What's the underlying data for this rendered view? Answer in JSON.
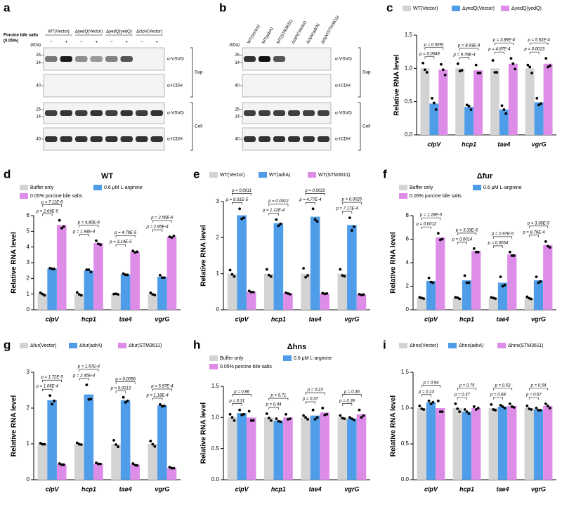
{
  "blots": [
    {
      "panel": "a",
      "columns": [
        "WT(Vector)",
        "ΔyedQ(Vector)",
        "ΔyedQ(yedQ)",
        "ΔclpV(Vector)"
      ],
      "treatment": [
        "Porcine bile salts",
        "(0.05%)"
      ],
      "signs": [
        "−",
        "+",
        "−",
        "+",
        "−",
        "+",
        "−",
        "+"
      ],
      "kda_label": "(kDa)",
      "fractions": [
        {
          "name": "Sup",
          "rows": [
            {
              "antibody": "α-VSVG",
              "markers": [
                25,
                14
              ]
            },
            {
              "antibody": "α-ICDH",
              "markers": [
                40
              ]
            }
          ]
        },
        {
          "name": "Cell",
          "rows": [
            {
              "antibody": "α-VSVG",
              "markers": [
                25,
                14
              ]
            },
            {
              "antibody": "α-ICDH",
              "markers": [
                40
              ]
            }
          ]
        }
      ]
    },
    {
      "panel": "b",
      "columns": [
        "WT(Vector)",
        "WT(adrA)",
        "WT(STM3611)",
        "ΔclpV(Vector)",
        "ΔclpV(adrA)",
        "ΔclpV(STM3611)"
      ],
      "kda_label": "(kDa)",
      "fractions": [
        {
          "name": "Sup",
          "rows": [
            {
              "antibody": "α-VSVG",
              "markers": [
                25,
                14
              ]
            },
            {
              "antibody": "α-ICDH",
              "markers": [
                40
              ]
            }
          ]
        },
        {
          "name": "Cell",
          "rows": [
            {
              "antibody": "α-VSVG",
              "markers": [
                25,
                14
              ]
            },
            {
              "antibody": "α-ICDH",
              "markers": [
                40
              ]
            }
          ]
        }
      ]
    }
  ],
  "chart_data": [
    {
      "type": "bar",
      "panel": "c",
      "y_label": "Relative RNA level",
      "categories": [
        "clpV",
        "hcp1",
        "tae4",
        "vgrG"
      ],
      "ylim": [
        0,
        1.5
      ],
      "yticks": [
        {
          "value": 0,
          "label": "0.0"
        },
        {
          "value": 0.5,
          "label": "0.5"
        },
        {
          "value": 1,
          "label": "1.0"
        },
        {
          "value": 1.5,
          "label": "1.5"
        }
      ],
      "series": [
        {
          "name": "WT(Vector)",
          "color": "#d3d3d3",
          "values": [
            1.0,
            1.0,
            1.0,
            1.0
          ],
          "points": [
            [
              1.08,
              0.94,
              0.98
            ],
            [
              1.07,
              0.97,
              0.96
            ],
            [
              1.12,
              0.94,
              0.94
            ],
            [
              1.05,
              0.93,
              1.02
            ]
          ]
        },
        {
          "name": "ΔyedQ(Vector)",
          "color": "#4f9de8",
          "values": [
            0.47,
            0.42,
            0.38,
            0.49
          ],
          "points": [
            [
              0.55,
              0.38,
              0.48
            ],
            [
              0.45,
              0.38,
              0.43
            ],
            [
              0.44,
              0.32,
              0.38
            ],
            [
              0.55,
              0.47,
              0.45
            ]
          ]
        },
        {
          "name": "ΔyedQ(yedQ)",
          "color": "#dd8de8",
          "values": [
            0.98,
            0.97,
            1.07,
            1.07
          ],
          "points": [
            [
              1.06,
              0.9,
              0.98
            ],
            [
              1.05,
              0.93,
              0.93
            ],
            [
              1.15,
              0.99,
              1.07
            ],
            [
              1.15,
              1.04,
              1.02
            ]
          ]
        }
      ],
      "p_values": [
        [
          "p = 0.0049",
          "p = 0.0091"
        ],
        [
          "p = 9.76E-4",
          "p = 8.93E-4"
        ],
        [
          "p = 4.87E-4",
          "p = 3.89E-4"
        ],
        [
          "p = 0.0013",
          "p = 5.62E-4"
        ]
      ]
    },
    {
      "type": "bar",
      "panel": "d",
      "title": "WT",
      "y_label": "Relative RNA level",
      "categories": [
        "clpV",
        "hcp1",
        "tae4",
        "vgrG"
      ],
      "ylim": [
        0,
        6
      ],
      "yticks": [
        0,
        1,
        2,
        3,
        4,
        5,
        6
      ],
      "series": [
        {
          "name": "Buffer only",
          "color": "#d3d3d3",
          "values": [
            1.0,
            1.0,
            1.0,
            1.0
          ],
          "points": [
            [
              1.08,
              0.92,
              1.0
            ],
            [
              1.1,
              0.92,
              0.98
            ],
            [
              1.0,
              0.98,
              1.02
            ],
            [
              1.08,
              0.94,
              0.98
            ]
          ]
        },
        {
          "name": "0.6 μM L-arginine",
          "color": "#4f9de8",
          "values": [
            2.62,
            2.5,
            2.25,
            2.1
          ],
          "points": [
            [
              2.65,
              2.6,
              2.61
            ],
            [
              2.55,
              2.4,
              2.55
            ],
            [
              2.3,
              2.22,
              2.23
            ],
            [
              2.2,
              2.05,
              2.05
            ]
          ]
        },
        {
          "name": "0.05% porcine bile salts",
          "color": "#dd8de8",
          "values": [
            5.4,
            4.25,
            3.7,
            4.65
          ],
          "points": [
            [
              5.7,
              5.3,
              5.2
            ],
            [
              4.4,
              4.15,
              4.2
            ],
            [
              3.75,
              3.7,
              3.65
            ],
            [
              4.65,
              4.7,
              4.6
            ]
          ]
        }
      ],
      "p_values": [
        [
          "p = 2.69E-5",
          "p = 7.11E-6"
        ],
        [
          "p = 1.94E-4",
          "p = 4.80E-6"
        ],
        [
          "p = 3.14E-5",
          "p = 4.79E-5"
        ],
        [
          "p = 2.95E-4",
          "p = 2.56E-6"
        ]
      ]
    },
    {
      "type": "bar",
      "panel": "e",
      "y_label": "Relative RNA level",
      "categories": [
        "clpV",
        "hcp1",
        "tae4",
        "vgrG"
      ],
      "ylim": [
        0,
        3
      ],
      "yticks": [
        0,
        1,
        2,
        3
      ],
      "series": [
        {
          "name": "WT(Vector)",
          "color": "#d3d3d3",
          "values": [
            1.0,
            1.0,
            1.0,
            1.0
          ],
          "points": [
            [
              1.1,
              0.92,
              0.98
            ],
            [
              1.12,
              0.92,
              0.96
            ],
            [
              1.15,
              0.95,
              0.9
            ],
            [
              1.12,
              0.93,
              0.95
            ]
          ]
        },
        {
          "name": "WT(adrA)",
          "color": "#4f9de8",
          "values": [
            2.62,
            2.4,
            2.58,
            2.35
          ],
          "points": [
            [
              2.8,
              2.55,
              2.52
            ],
            [
              2.5,
              2.38,
              2.33
            ],
            [
              2.8,
              2.45,
              2.5
            ],
            [
              2.55,
              2.3,
              2.2
            ]
          ]
        },
        {
          "name": "WT(STM3611)",
          "color": "#dd8de8",
          "values": [
            0.5,
            0.45,
            0.45,
            0.42
          ],
          "points": [
            [
              0.52,
              0.49,
              0.49
            ],
            [
              0.47,
              0.43,
              0.45
            ],
            [
              0.46,
              0.45,
              0.44
            ],
            [
              0.43,
              0.42,
              0.41
            ]
          ]
        }
      ],
      "p_values": [
        [
          "p = 9.01E-5",
          "p = 0.0011"
        ],
        [
          "p = 1.12E-4",
          "p = 0.0012"
        ],
        [
          "p = 4.77E-4",
          "p = 0.0022"
        ],
        [
          "p = 7.17E-4",
          "p = 0.0025"
        ]
      ]
    },
    {
      "type": "bar",
      "panel": "f",
      "title": "Δfur",
      "y_label": "Relative RNA level",
      "categories": [
        "clpV",
        "hcp1",
        "tae4",
        "vgrG"
      ],
      "ylim": [
        0,
        8
      ],
      "yticks": [
        0,
        2,
        4,
        6,
        8
      ],
      "series": [
        {
          "name": "Buffer only",
          "color": "#d3d3d3",
          "values": [
            1.0,
            1.0,
            1.0,
            1.0
          ],
          "points": [
            [
              1.05,
              0.95,
              1.0
            ],
            [
              1.05,
              0.93,
              1.02
            ],
            [
              1.05,
              0.95,
              1.0
            ],
            [
              1.1,
              0.92,
              0.98
            ]
          ]
        },
        {
          "name": "0.6 μM L-arginine",
          "color": "#4f9de8",
          "values": [
            2.45,
            2.5,
            2.3,
            2.5
          ],
          "points": [
            [
              2.7,
              2.3,
              2.35
            ],
            [
              2.9,
              2.3,
              2.3
            ],
            [
              2.8,
              2.1,
              2.0
            ],
            [
              2.8,
              2.4,
              2.3
            ]
          ]
        },
        {
          "name": "0.05% porcine bile salts",
          "color": "#dd8de8",
          "values": [
            6.15,
            5.0,
            4.7,
            5.5
          ],
          "points": [
            [
              6.5,
              6.0,
              5.95
            ],
            [
              5.2,
              4.9,
              4.9
            ],
            [
              4.9,
              4.6,
              4.6
            ],
            [
              5.8,
              5.3,
              5.4
            ]
          ]
        }
      ],
      "p_values": [
        [
          "p = 0.0012",
          "p = 1.18E-5"
        ],
        [
          "p = 0.0014",
          "p = 3.33E-6"
        ],
        [
          "p = 0.0054",
          "p = 2.97E-5"
        ],
        [
          "p = 8.76E-4",
          "p = 3.36E-5"
        ]
      ]
    },
    {
      "type": "bar",
      "panel": "g",
      "y_label": "Relative RNA level",
      "categories": [
        "clpV",
        "hcp1",
        "tae4",
        "vgrG"
      ],
      "ylim": [
        0,
        3
      ],
      "yticks": [
        0,
        1,
        2,
        3
      ],
      "series": [
        {
          "name": "Δfur(Vector)",
          "color": "#d3d3d3",
          "values": [
            1.0,
            1.0,
            1.0,
            1.0
          ],
          "points": [
            [
              1.02,
              0.99,
              0.99
            ],
            [
              1.03,
              0.98,
              0.99
            ],
            [
              1.1,
              0.92,
              0.98
            ],
            [
              1.08,
              0.93,
              0.99
            ]
          ]
        },
        {
          "name": "Δfur(adrA)",
          "color": "#4f9de8",
          "values": [
            2.22,
            2.38,
            2.22,
            2.07
          ],
          "points": [
            [
              2.35,
              2.2,
              2.11
            ],
            [
              2.65,
              2.25,
              2.24
            ],
            [
              2.3,
              2.2,
              2.16
            ],
            [
              2.1,
              2.06,
              2.05
            ]
          ]
        },
        {
          "name": "Δfur(STM3611)",
          "color": "#dd8de8",
          "values": [
            0.43,
            0.45,
            0.42,
            0.33
          ],
          "points": [
            [
              0.45,
              0.42,
              0.42
            ],
            [
              0.47,
              0.44,
              0.44
            ],
            [
              0.45,
              0.4,
              0.41
            ],
            [
              0.35,
              0.32,
              0.32
            ]
          ]
        }
      ],
      "p_values": [
        [
          "p = 1.06E-4",
          "p = 1.72E-5"
        ],
        [
          "p = 2.45E-4",
          "p = 1.57E-4"
        ],
        [
          "p = 0.0013",
          "p = 0.0056"
        ],
        [
          "p = 1.18E-4",
          "p = 5.97E-4"
        ]
      ]
    },
    {
      "type": "bar",
      "panel": "h",
      "title": "Δhns",
      "y_label": "Relative RNA level",
      "categories": [
        "clpV",
        "hcp1",
        "tae4",
        "vgrG"
      ],
      "ylim": [
        0,
        1.5
      ],
      "yticks": [
        {
          "value": 0,
          "label": "0.0"
        },
        {
          "value": 0.5,
          "label": "0.5"
        },
        {
          "value": 1,
          "label": "1.0"
        },
        {
          "value": 1.5,
          "label": "1.5"
        }
      ],
      "series": [
        {
          "name": "Buffer only",
          "color": "#d3d3d3",
          "values": [
            1.0,
            1.0,
            1.0,
            1.0
          ],
          "points": [
            [
              1.05,
              0.95,
              1.0
            ],
            [
              1.06,
              0.95,
              0.99
            ],
            [
              1.03,
              0.97,
              1.0
            ],
            [
              1.03,
              0.98,
              0.99
            ]
          ]
        },
        {
          "name": "0.6 μM L-arginine",
          "color": "#4f9de8",
          "values": [
            1.07,
            0.95,
            1.03,
            0.98
          ],
          "points": [
            [
              1.12,
              1.05,
              1.04
            ],
            [
              0.98,
              0.93,
              0.94
            ],
            [
              1.12,
              1.0,
              0.97
            ],
            [
              1.0,
              0.96,
              0.98
            ]
          ]
        },
        {
          "name": "0.05% porcine bile salts",
          "color": "#dd8de8",
          "values": [
            1.0,
            1.0,
            1.08,
            1.05
          ],
          "points": [
            [
              1.1,
              0.95,
              0.95
            ],
            [
              1.05,
              0.98,
              0.97
            ],
            [
              1.15,
              1.05,
              1.04
            ],
            [
              1.12,
              1.03,
              1.0
            ]
          ]
        }
      ],
      "p_values": [
        [
          "p = 0.31",
          "p = 0.86"
        ],
        [
          "p = 0.44",
          "p = 0.71"
        ],
        [
          "p = 0.37",
          "p = 0.23"
        ],
        [
          "p = 0.39",
          "p = 0.36"
        ]
      ]
    },
    {
      "type": "bar",
      "panel": "i",
      "y_label": "Relative RNA level",
      "categories": [
        "clpV",
        "hcp1",
        "tae4",
        "vgrG"
      ],
      "ylim": [
        0,
        1.5
      ],
      "yticks": [
        {
          "value": 0,
          "label": "0.0"
        },
        {
          "value": 0.5,
          "label": "0.5"
        },
        {
          "value": 1,
          "label": "1.0"
        },
        {
          "value": 1.5,
          "label": "1.5"
        }
      ],
      "series": [
        {
          "name": "Δhns(Vector)",
          "color": "#d3d3d3",
          "values": [
            1.0,
            1.0,
            1.0,
            1.0
          ],
          "points": [
            [
              1.03,
              0.98,
              0.99
            ],
            [
              1.06,
              0.95,
              0.99
            ],
            [
              1.05,
              0.97,
              0.98
            ],
            [
              1.03,
              0.98,
              0.99
            ]
          ]
        },
        {
          "name": "Δhns(adrA)",
          "color": "#4f9de8",
          "values": [
            1.08,
            0.95,
            1.02,
            0.98
          ],
          "points": [
            [
              1.1,
              1.08,
              1.06
            ],
            [
              0.98,
              0.92,
              0.95
            ],
            [
              1.04,
              1.0,
              1.02
            ],
            [
              1.0,
              0.97,
              0.97
            ]
          ]
        },
        {
          "name": "Δhns(STM3611)",
          "color": "#dd8de8",
          "values": [
            1.0,
            1.0,
            1.03,
            1.03
          ],
          "points": [
            [
              1.1,
              0.95,
              0.95
            ],
            [
              1.02,
              1.0,
              0.98
            ],
            [
              1.06,
              1.01,
              1.02
            ],
            [
              1.06,
              1.0,
              1.03
            ]
          ]
        }
      ],
      "p_values": [
        [
          "p = 0.13",
          "p = 0.94"
        ],
        [
          "p = 0.37",
          "p = 0.75"
        ],
        [
          "p = 0.68",
          "p = 0.53"
        ],
        [
          "p = 0.67",
          "p = 0.54"
        ]
      ]
    }
  ]
}
